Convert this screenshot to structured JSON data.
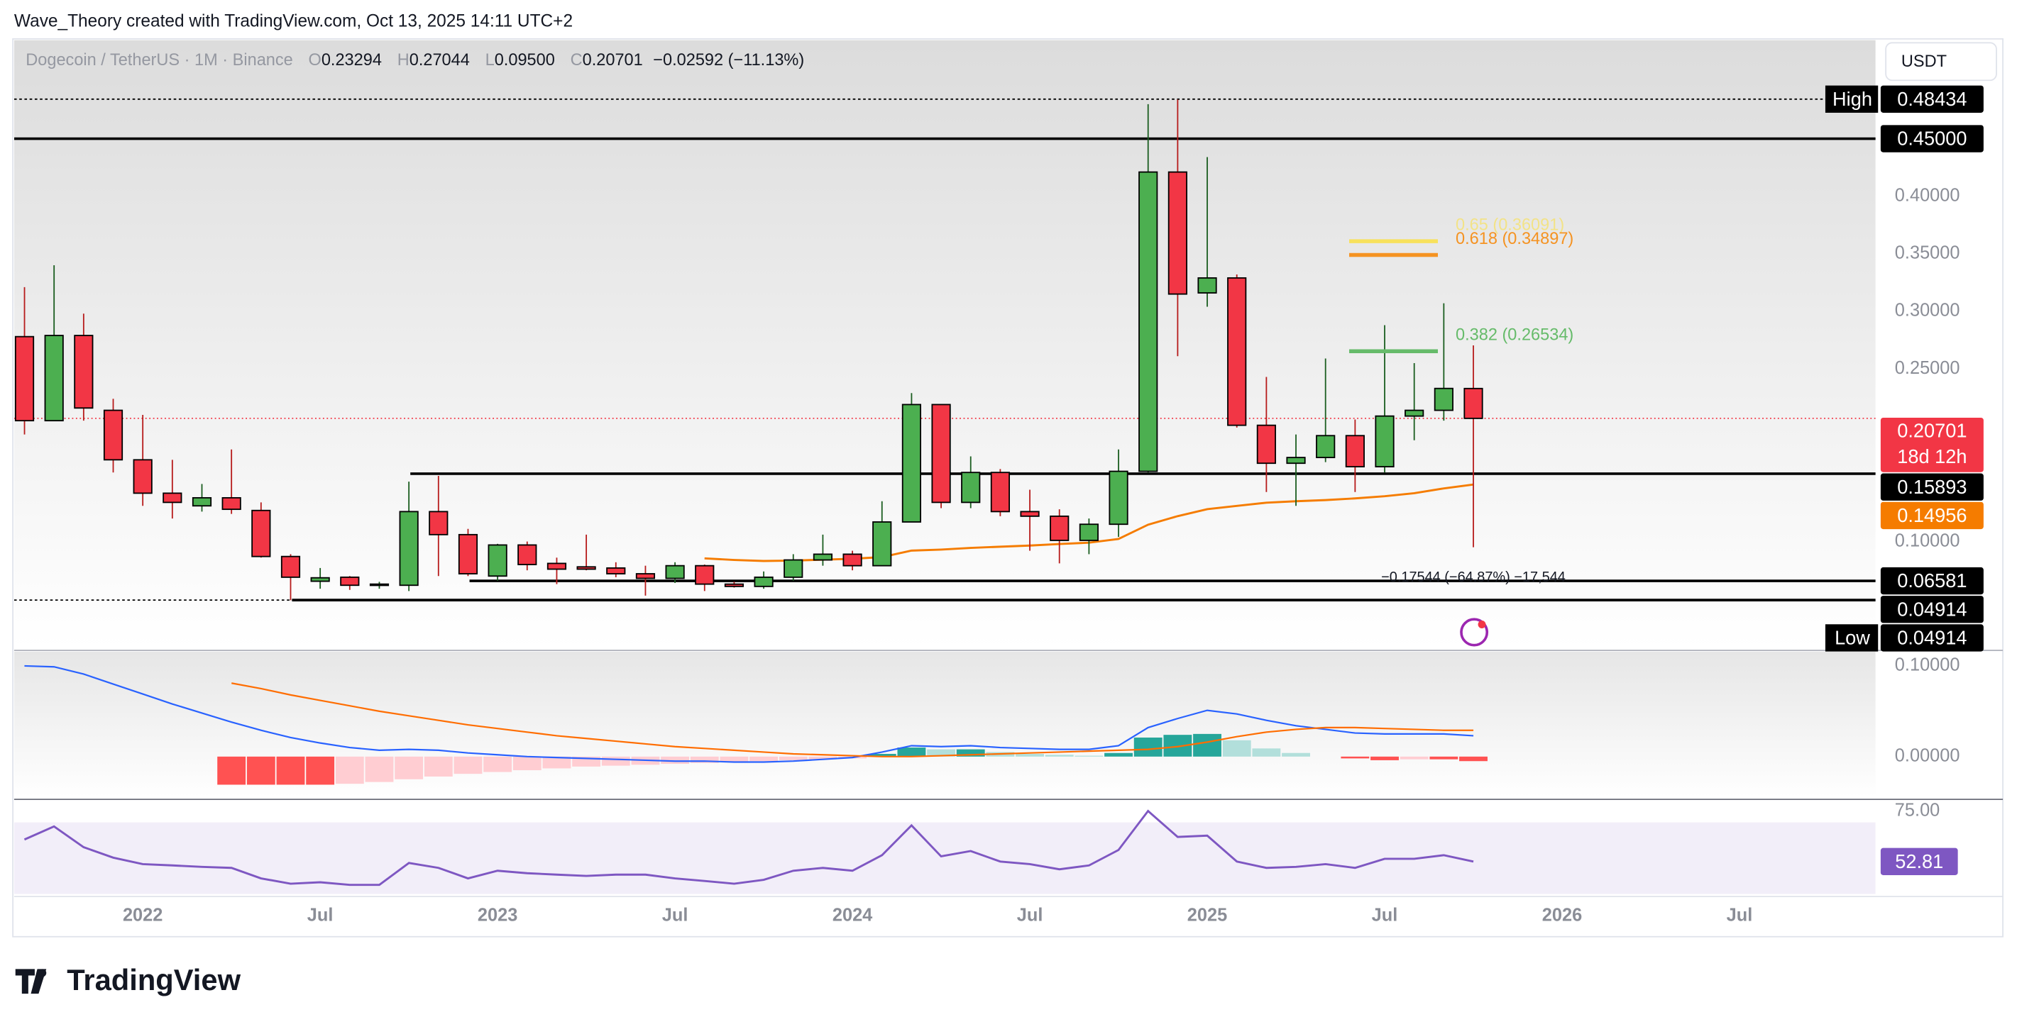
{
  "page": {
    "author_line": "Wave_Theory created with TradingView.com, Oct 13, 2025 14:11 UTC+2",
    "brand": "TradingView",
    "currency": "USDT"
  },
  "chart_data": [
    {
      "type": "candlestick",
      "title": "Dogecoin / TetherUS · 1M · Binance",
      "legend": [
        {
          "key": "O",
          "value": "0.23294"
        },
        {
          "key": "H",
          "value": "0.27044"
        },
        {
          "key": "L",
          "value": "0.09500"
        },
        {
          "key": "C",
          "value": "0.20701"
        }
      ],
      "change": "−0.02592 (−11.13%)",
      "up_color": "#4caf50",
      "down_color": "#f23645",
      "grid": false,
      "open": [
        0.278,
        0.205,
        0.279,
        0.214,
        0.171,
        0.142,
        0.131,
        0.138,
        0.127,
        0.087,
        0.0655,
        0.069,
        0.062,
        0.062,
        0.126,
        0.106,
        0.07,
        0.097,
        0.081,
        0.078,
        0.077,
        0.072,
        0.068,
        0.079,
        0.063,
        0.061,
        0.069,
        0.084,
        0.089,
        0.079,
        0.117,
        0.219,
        0.134,
        0.16,
        0.126,
        0.122,
        0.101,
        0.115,
        0.161,
        0.421,
        0.316,
        0.329,
        0.201,
        0.168,
        0.173,
        0.192,
        0.165,
        0.209,
        0.214,
        0.23294
      ],
      "high": [
        0.321,
        0.34,
        0.298,
        0.224,
        0.21,
        0.171,
        0.15,
        0.18,
        0.134,
        0.089,
        0.077,
        0.07,
        0.065,
        0.152,
        0.157,
        0.111,
        0.098,
        0.1,
        0.086,
        0.106,
        0.082,
        0.079,
        0.082,
        0.08,
        0.065,
        0.074,
        0.089,
        0.106,
        0.092,
        0.135,
        0.229,
        0.219,
        0.174,
        0.163,
        0.145,
        0.128,
        0.12,
        0.18,
        0.48,
        0.484,
        0.434,
        0.332,
        0.243,
        0.193,
        0.259,
        0.206,
        0.288,
        0.255,
        0.307,
        0.27044
      ],
      "low": [
        0.193,
        0.205,
        0.205,
        0.16,
        0.131,
        0.12,
        0.126,
        0.124,
        0.086,
        0.049,
        0.059,
        0.058,
        0.059,
        0.057,
        0.07,
        0.07,
        0.066,
        0.075,
        0.063,
        0.075,
        0.069,
        0.053,
        0.064,
        0.057,
        0.06,
        0.059,
        0.066,
        0.079,
        0.075,
        0.079,
        0.117,
        0.129,
        0.129,
        0.122,
        0.092,
        0.081,
        0.089,
        0.104,
        0.16,
        0.261,
        0.304,
        0.199,
        0.143,
        0.131,
        0.169,
        0.143,
        0.16,
        0.188,
        0.205,
        0.095
      ],
      "close": [
        0.205,
        0.279,
        0.216,
        0.171,
        0.142,
        0.134,
        0.138,
        0.128,
        0.087,
        0.069,
        0.0685,
        0.062,
        0.063,
        0.126,
        0.106,
        0.072,
        0.097,
        0.08,
        0.076,
        0.076,
        0.072,
        0.068,
        0.079,
        0.063,
        0.061,
        0.069,
        0.084,
        0.089,
        0.079,
        0.117,
        0.219,
        0.134,
        0.16,
        0.126,
        0.122,
        0.101,
        0.115,
        0.161,
        0.421,
        0.315,
        0.329,
        0.201,
        0.168,
        0.173,
        0.192,
        0.165,
        0.209,
        0.214,
        0.233,
        0.20701
      ],
      "ema": {
        "color": "#f57c00",
        "values": [
          null,
          null,
          null,
          null,
          null,
          null,
          null,
          null,
          null,
          null,
          null,
          null,
          null,
          null,
          null,
          null,
          null,
          null,
          null,
          null,
          null,
          null,
          null,
          0.0854,
          0.084,
          0.0831,
          0.0835,
          0.0842,
          0.085,
          0.0865,
          0.0921,
          0.093,
          0.0945,
          0.0955,
          0.0965,
          0.0978,
          0.099,
          0.1023,
          0.1146,
          0.122,
          0.1281,
          0.131,
          0.1338,
          0.135,
          0.136,
          0.1375,
          0.1394,
          0.142,
          0.1461,
          0.14956
        ],
        "label": "0.14956"
      },
      "last_price": {
        "value": 0.20701,
        "label": "0.20701",
        "countdown": "18d 12h"
      },
      "xlim": [
        -0.35,
        62.6
      ],
      "xticks": [
        {
          "value": 4,
          "label": "2022"
        },
        {
          "value": 10,
          "label": "Jul"
        },
        {
          "value": 16,
          "label": "2023"
        },
        {
          "value": 22,
          "label": "Jul"
        },
        {
          "value": 28,
          "label": "2024"
        },
        {
          "value": 34,
          "label": "Jul"
        },
        {
          "value": 40,
          "label": "2025"
        },
        {
          "value": 46,
          "label": "Jul"
        },
        {
          "value": 52,
          "label": "2026"
        },
        {
          "value": 58,
          "label": "Jul"
        }
      ],
      "ylim": [
        0.0077,
        0.5367
      ],
      "yticks": [
        {
          "value": 0.1,
          "label": "0.10000"
        },
        {
          "value": 0.25,
          "label": "0.25000"
        },
        {
          "value": 0.3,
          "label": "0.30000"
        },
        {
          "value": 0.35,
          "label": "0.35000"
        },
        {
          "value": 0.4,
          "label": "0.40000"
        }
      ],
      "levels": [
        {
          "value": 0.48434,
          "label": "0.48434",
          "tag": "High",
          "style": "dotted"
        },
        {
          "value": 0.45,
          "label": "0.45000",
          "style": "solid"
        },
        {
          "value": 0.15893,
          "label": "0.15893",
          "style": "solid"
        },
        {
          "value": 0.06581,
          "label": "0.06581",
          "style": "solid"
        },
        {
          "value": 0.04914,
          "label": "0.04914",
          "style": "solid"
        },
        {
          "value": 0.04914,
          "label": "0.04914",
          "tag": "Low",
          "style": "dotted"
        }
      ],
      "fibs": [
        {
          "value": 0.36091,
          "label": "0.65 (0.36091)",
          "color": "#fde03a"
        },
        {
          "value": 0.34897,
          "label": "0.618 (0.34897)",
          "color": "#f59322"
        },
        {
          "value": 0.26534,
          "label": "0.382 (0.26534)",
          "color": "#66bb6a"
        }
      ],
      "measure": "−0.17544 (−64.87%) −17,544"
    },
    {
      "type": "macd",
      "grid": false,
      "macd": {
        "color": "#2962ff",
        "values": [
          0.1,
          0.099,
          0.091,
          0.08,
          0.069,
          0.058,
          0.048,
          0.038,
          0.029,
          0.021,
          0.015,
          0.01,
          0.007,
          0.008,
          0.007,
          0.004,
          0.002,
          0.0,
          -0.001,
          -0.002,
          -0.003,
          -0.004,
          -0.005,
          -0.005,
          -0.006,
          -0.006,
          -0.005,
          -0.003,
          -0.001,
          0.005,
          0.012,
          0.011,
          0.012,
          0.01,
          0.009,
          0.008,
          0.008,
          0.012,
          0.032,
          0.042,
          0.051,
          0.047,
          0.04,
          0.034,
          0.03,
          0.026,
          0.025,
          0.025,
          0.025,
          0.023
        ]
      },
      "signal": {
        "color": "#ff6d00",
        "values": [
          null,
          null,
          null,
          null,
          null,
          null,
          null,
          0.081,
          0.075,
          0.068,
          0.062,
          0.056,
          0.05,
          0.045,
          0.04,
          0.035,
          0.031,
          0.027,
          0.023,
          0.02,
          0.017,
          0.014,
          0.011,
          0.009,
          0.007,
          0.005,
          0.003,
          0.002,
          0.001,
          0.0,
          0.0,
          0.001,
          0.002,
          0.003,
          0.004,
          0.005,
          0.006,
          0.007,
          0.008,
          0.011,
          0.016,
          0.022,
          0.027,
          0.03,
          0.032,
          0.032,
          0.031,
          0.03,
          0.029,
          0.029
        ]
      },
      "histogram": {
        "up_colors": [
          "#26a69a",
          "#b2dfdb"
        ],
        "down_colors": [
          "#ff5252",
          "#ffcdd2"
        ],
        "values": [
          null,
          null,
          null,
          null,
          null,
          null,
          null,
          -0.031,
          -0.031,
          -0.031,
          -0.031,
          -0.03,
          -0.028,
          -0.025,
          -0.022,
          -0.019,
          -0.017,
          -0.015,
          -0.013,
          -0.011,
          -0.01,
          -0.009,
          -0.008,
          -0.007,
          -0.006,
          -0.005,
          -0.004,
          -0.003,
          -0.002,
          0.003,
          0.01,
          0.008,
          0.008,
          0.005,
          0.003,
          0.002,
          0.001,
          0.004,
          0.021,
          0.024,
          0.025,
          0.018,
          0.009,
          0.004,
          0.0,
          -0.002,
          -0.004,
          -0.003,
          -0.003,
          -0.005
        ]
      },
      "ylim": [
        -0.0443,
        0.1129
      ],
      "yticks": [
        {
          "value": 0,
          "label": "0.00000"
        },
        {
          "value": 0.1,
          "label": "0.10000"
        }
      ]
    },
    {
      "type": "rsi",
      "grid": false,
      "color": "#7e57c2",
      "band": [
        30,
        70
      ],
      "values": [
        62.5,
        68.2,
        59.1,
        54.5,
        51.7,
        51.1,
        50.5,
        50.0,
        45.4,
        43.1,
        43.7,
        42.6,
        42.6,
        52.2,
        50.0,
        45.4,
        48.8,
        47.7,
        47.1,
        46.5,
        47.1,
        47.1,
        45.4,
        44.3,
        43.1,
        44.8,
        48.8,
        50.0,
        48.8,
        55.6,
        68.7,
        55.1,
        57.4,
        52.8,
        51.7,
        49.4,
        51.1,
        57.9,
        75.0,
        63.6,
        64.2,
        52.8,
        50.0,
        50.5,
        51.7,
        50.0,
        54.0,
        54.0,
        55.6,
        52.81
      ],
      "ylim": [
        38.6,
        78.4
      ],
      "yticks": [
        {
          "value": 75,
          "label": "75.00"
        }
      ]
    }
  ]
}
